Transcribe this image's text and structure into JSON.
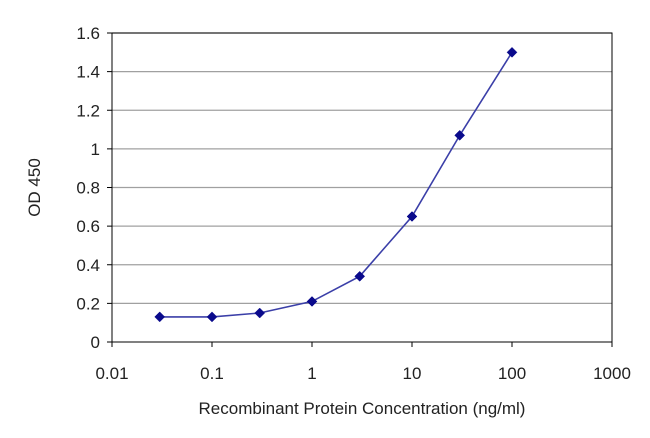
{
  "chart_data": {
    "type": "line",
    "title": "",
    "xlabel": "Recombinant Protein Concentration (ng/ml)",
    "ylabel": "OD 450",
    "x_scale": "log",
    "xlim": [
      0.01,
      1000
    ],
    "ylim": [
      0,
      1.6
    ],
    "x_ticks": [
      0.01,
      0.1,
      1,
      10,
      100,
      1000
    ],
    "x_tick_labels": [
      "0.01",
      "0.1",
      "1",
      "10",
      "100",
      "1000"
    ],
    "y_ticks": [
      0,
      0.2,
      0.4,
      0.6,
      0.8,
      1,
      1.2,
      1.4,
      1.6
    ],
    "y_tick_labels": [
      "0",
      "0.2",
      "0.4",
      "0.6",
      "0.8",
      "1",
      "1.2",
      "1.4",
      "1.6"
    ],
    "grid": "horizontal",
    "legend": "none",
    "series": [
      {
        "x": [
          0.03,
          0.1,
          0.3,
          1,
          3,
          10,
          30,
          100
        ],
        "y": [
          0.13,
          0.13,
          0.15,
          0.21,
          0.34,
          0.65,
          1.07,
          1.5
        ],
        "color": "#3b3fa8",
        "marker_color": "#0a0a8c",
        "marker": "diamond"
      }
    ]
  }
}
